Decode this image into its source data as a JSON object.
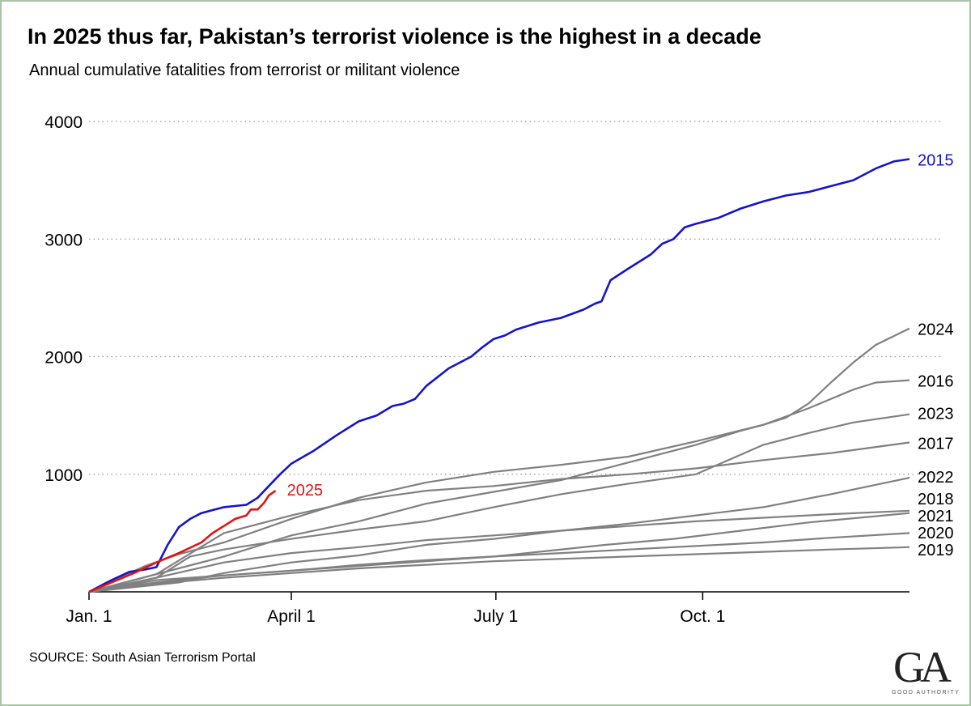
{
  "title": "In 2025 thus far, Pakistan’s terrorist violence is the highest in a decade",
  "subtitle": "Annual cumulative fatalities from terrorist or militant violence",
  "source": "SOURCE: South Asian Terrorism Portal",
  "logo": {
    "letters": "GA",
    "name": "GOOD AUTHORITY"
  },
  "colors": {
    "highlight_2015": "#1414cc",
    "highlight_2025": "#e11414",
    "others": "#808080",
    "grid": "#999999"
  },
  "chart_data": {
    "type": "line",
    "x_unit": "day of year",
    "x_ticks": [
      {
        "label": "Jan. 1",
        "value": 0
      },
      {
        "label": "April 1",
        "value": 90
      },
      {
        "label": "July 1",
        "value": 181
      },
      {
        "label": "Oct. 1",
        "value": 273
      }
    ],
    "y_ticks": [
      1000,
      2000,
      3000,
      4000
    ],
    "xlim": [
      0,
      365
    ],
    "ylim": [
      0,
      4000
    ],
    "grid": "horizontal dotted",
    "series": [
      {
        "name": "2015",
        "highlight": "blue",
        "points": [
          [
            0,
            0
          ],
          [
            10,
            100
          ],
          [
            18,
            170
          ],
          [
            25,
            190
          ],
          [
            30,
            210
          ],
          [
            35,
            400
          ],
          [
            40,
            550
          ],
          [
            45,
            620
          ],
          [
            50,
            670
          ],
          [
            60,
            720
          ],
          [
            70,
            740
          ],
          [
            75,
            800
          ],
          [
            80,
            900
          ],
          [
            85,
            1000
          ],
          [
            90,
            1090
          ],
          [
            100,
            1200
          ],
          [
            110,
            1330
          ],
          [
            120,
            1450
          ],
          [
            128,
            1500
          ],
          [
            135,
            1580
          ],
          [
            140,
            1600
          ],
          [
            145,
            1640
          ],
          [
            150,
            1750
          ],
          [
            160,
            1900
          ],
          [
            170,
            2000
          ],
          [
            175,
            2080
          ],
          [
            180,
            2150
          ],
          [
            185,
            2180
          ],
          [
            190,
            2230
          ],
          [
            200,
            2290
          ],
          [
            210,
            2330
          ],
          [
            220,
            2400
          ],
          [
            225,
            2450
          ],
          [
            228,
            2470
          ],
          [
            232,
            2650
          ],
          [
            240,
            2750
          ],
          [
            250,
            2870
          ],
          [
            255,
            2960
          ],
          [
            260,
            3000
          ],
          [
            265,
            3100
          ],
          [
            270,
            3130
          ],
          [
            280,
            3180
          ],
          [
            290,
            3260
          ],
          [
            300,
            3320
          ],
          [
            310,
            3370
          ],
          [
            320,
            3400
          ],
          [
            330,
            3450
          ],
          [
            340,
            3500
          ],
          [
            350,
            3600
          ],
          [
            358,
            3660
          ],
          [
            365,
            3680
          ]
        ]
      },
      {
        "name": "2024",
        "points": [
          [
            0,
            0
          ],
          [
            30,
            150
          ],
          [
            60,
            300
          ],
          [
            90,
            480
          ],
          [
            120,
            600
          ],
          [
            150,
            750
          ],
          [
            180,
            850
          ],
          [
            210,
            950
          ],
          [
            240,
            1100
          ],
          [
            270,
            1250
          ],
          [
            290,
            1370
          ],
          [
            300,
            1420
          ],
          [
            310,
            1480
          ],
          [
            320,
            1600
          ],
          [
            330,
            1780
          ],
          [
            340,
            1950
          ],
          [
            350,
            2100
          ],
          [
            365,
            2240
          ]
        ]
      },
      {
        "name": "2016",
        "points": [
          [
            0,
            0
          ],
          [
            25,
            220
          ],
          [
            40,
            320
          ],
          [
            60,
            420
          ],
          [
            90,
            620
          ],
          [
            120,
            800
          ],
          [
            150,
            930
          ],
          [
            180,
            1020
          ],
          [
            210,
            1080
          ],
          [
            240,
            1150
          ],
          [
            270,
            1280
          ],
          [
            300,
            1420
          ],
          [
            320,
            1560
          ],
          [
            340,
            1720
          ],
          [
            350,
            1780
          ],
          [
            365,
            1800
          ]
        ]
      },
      {
        "name": "2023",
        "points": [
          [
            0,
            0
          ],
          [
            30,
            120
          ],
          [
            45,
            300
          ],
          [
            60,
            360
          ],
          [
            90,
            450
          ],
          [
            120,
            530
          ],
          [
            150,
            600
          ],
          [
            180,
            720
          ],
          [
            210,
            830
          ],
          [
            240,
            920
          ],
          [
            270,
            1000
          ],
          [
            300,
            1250
          ],
          [
            320,
            1350
          ],
          [
            340,
            1440
          ],
          [
            365,
            1510
          ]
        ]
      },
      {
        "name": "2017",
        "points": [
          [
            0,
            0
          ],
          [
            30,
            150
          ],
          [
            60,
            500
          ],
          [
            90,
            650
          ],
          [
            120,
            780
          ],
          [
            150,
            860
          ],
          [
            180,
            900
          ],
          [
            210,
            960
          ],
          [
            240,
            1000
          ],
          [
            270,
            1050
          ],
          [
            300,
            1120
          ],
          [
            330,
            1180
          ],
          [
            365,
            1270
          ]
        ]
      },
      {
        "name": "2022",
        "points": [
          [
            0,
            0
          ],
          [
            40,
            80
          ],
          [
            60,
            160
          ],
          [
            90,
            250
          ],
          [
            120,
            310
          ],
          [
            150,
            400
          ],
          [
            180,
            450
          ],
          [
            210,
            520
          ],
          [
            240,
            580
          ],
          [
            270,
            650
          ],
          [
            300,
            720
          ],
          [
            330,
            830
          ],
          [
            365,
            970
          ]
        ]
      },
      {
        "name": "2018",
        "points": [
          [
            0,
            0
          ],
          [
            30,
            120
          ],
          [
            60,
            250
          ],
          [
            90,
            330
          ],
          [
            120,
            380
          ],
          [
            150,
            440
          ],
          [
            180,
            480
          ],
          [
            210,
            520
          ],
          [
            240,
            560
          ],
          [
            270,
            600
          ],
          [
            300,
            630
          ],
          [
            330,
            660
          ],
          [
            365,
            690
          ]
        ]
      },
      {
        "name": "2021",
        "points": [
          [
            0,
            0
          ],
          [
            30,
            100
          ],
          [
            60,
            140
          ],
          [
            90,
            180
          ],
          [
            120,
            220
          ],
          [
            150,
            260
          ],
          [
            180,
            300
          ],
          [
            200,
            340
          ],
          [
            230,
            400
          ],
          [
            260,
            450
          ],
          [
            290,
            520
          ],
          [
            320,
            590
          ],
          [
            365,
            670
          ]
        ]
      },
      {
        "name": "2020",
        "points": [
          [
            0,
            0
          ],
          [
            30,
            80
          ],
          [
            60,
            140
          ],
          [
            90,
            180
          ],
          [
            120,
            230
          ],
          [
            150,
            270
          ],
          [
            180,
            300
          ],
          [
            210,
            330
          ],
          [
            240,
            360
          ],
          [
            270,
            390
          ],
          [
            300,
            420
          ],
          [
            330,
            460
          ],
          [
            365,
            500
          ]
        ]
      },
      {
        "name": "2019",
        "points": [
          [
            0,
            0
          ],
          [
            30,
            70
          ],
          [
            60,
            120
          ],
          [
            90,
            160
          ],
          [
            120,
            200
          ],
          [
            150,
            230
          ],
          [
            180,
            260
          ],
          [
            210,
            280
          ],
          [
            240,
            300
          ],
          [
            270,
            320
          ],
          [
            300,
            340
          ],
          [
            330,
            360
          ],
          [
            365,
            380
          ]
        ]
      },
      {
        "name": "2025",
        "highlight": "red",
        "points": [
          [
            0,
            0
          ],
          [
            10,
            80
          ],
          [
            20,
            160
          ],
          [
            30,
            250
          ],
          [
            40,
            330
          ],
          [
            50,
            420
          ],
          [
            55,
            500
          ],
          [
            60,
            560
          ],
          [
            65,
            620
          ],
          [
            70,
            650
          ],
          [
            72,
            700
          ],
          [
            75,
            700
          ],
          [
            78,
            760
          ],
          [
            80,
            820
          ],
          [
            83,
            860
          ]
        ]
      }
    ]
  }
}
